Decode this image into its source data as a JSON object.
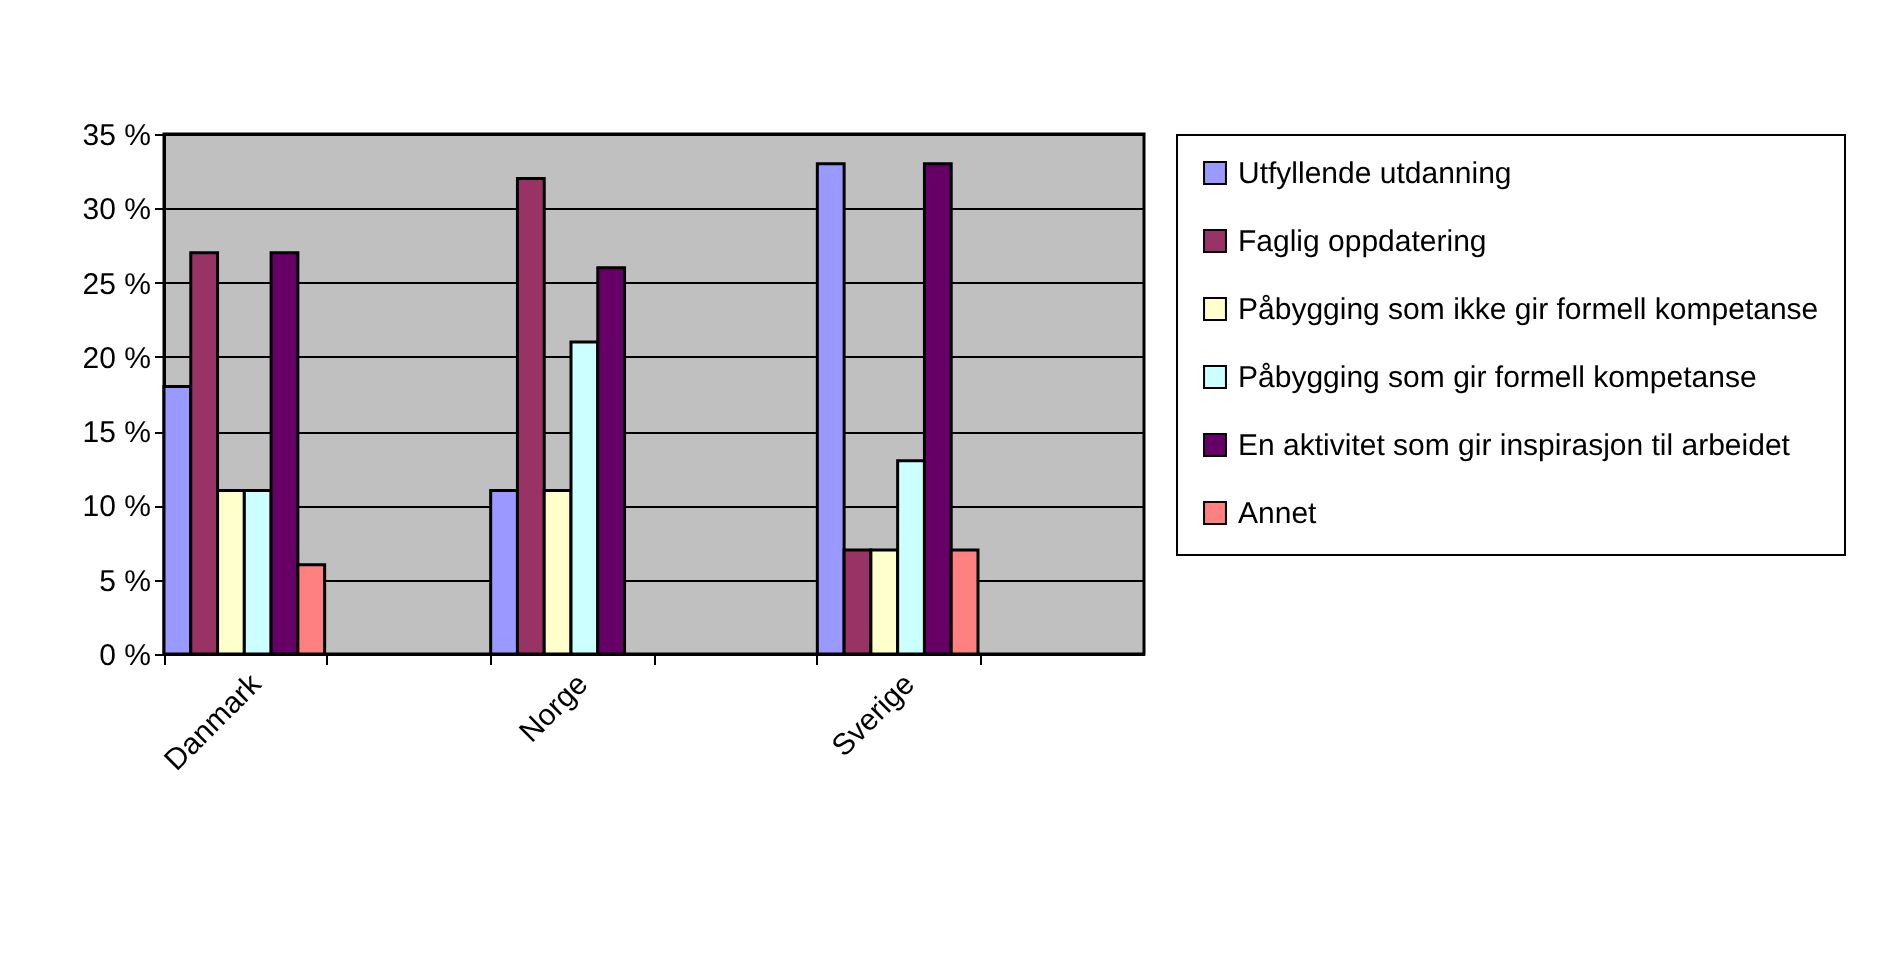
{
  "chart_data": {
    "type": "bar",
    "categories": [
      "Danmark",
      null,
      "Norge",
      null,
      "Sverige",
      null
    ],
    "series": [
      {
        "name": "Utfyllende utdanning",
        "color": "#9999ff",
        "values": [
          18,
          null,
          11,
          null,
          33,
          null
        ]
      },
      {
        "name": "Faglig oppdatering",
        "color": "#993366",
        "values": [
          27,
          null,
          32,
          null,
          7,
          null
        ]
      },
      {
        "name": "Påbygging som ikke gir formell kompetanse",
        "color": "#ffffcc",
        "values": [
          11,
          null,
          11,
          null,
          7,
          null
        ]
      },
      {
        "name": "Påbygging som gir formell kompetanse",
        "color": "#ccffff",
        "values": [
          11,
          null,
          21,
          null,
          13,
          null
        ]
      },
      {
        "name": "En aktivitet som gir inspirasjon til arbeidet",
        "color": "#660066",
        "values": [
          27,
          null,
          26,
          null,
          33,
          null
        ]
      },
      {
        "name": "Annet",
        "color": "#ff8080",
        "values": [
          6,
          null,
          null,
          null,
          7,
          null
        ]
      }
    ],
    "ylim": [
      0,
      35
    ],
    "yticks": [
      {
        "value": 0,
        "label": "0 %"
      },
      {
        "value": 5,
        "label": "5 %"
      },
      {
        "value": 10,
        "label": "10 %"
      },
      {
        "value": 15,
        "label": "15 %"
      },
      {
        "value": 20,
        "label": "20 %"
      },
      {
        "value": 25,
        "label": "25 %"
      },
      {
        "value": 30,
        "label": "30 %"
      },
      {
        "value": 35,
        "label": "35 %"
      }
    ],
    "grid": "y",
    "legend": "right"
  }
}
